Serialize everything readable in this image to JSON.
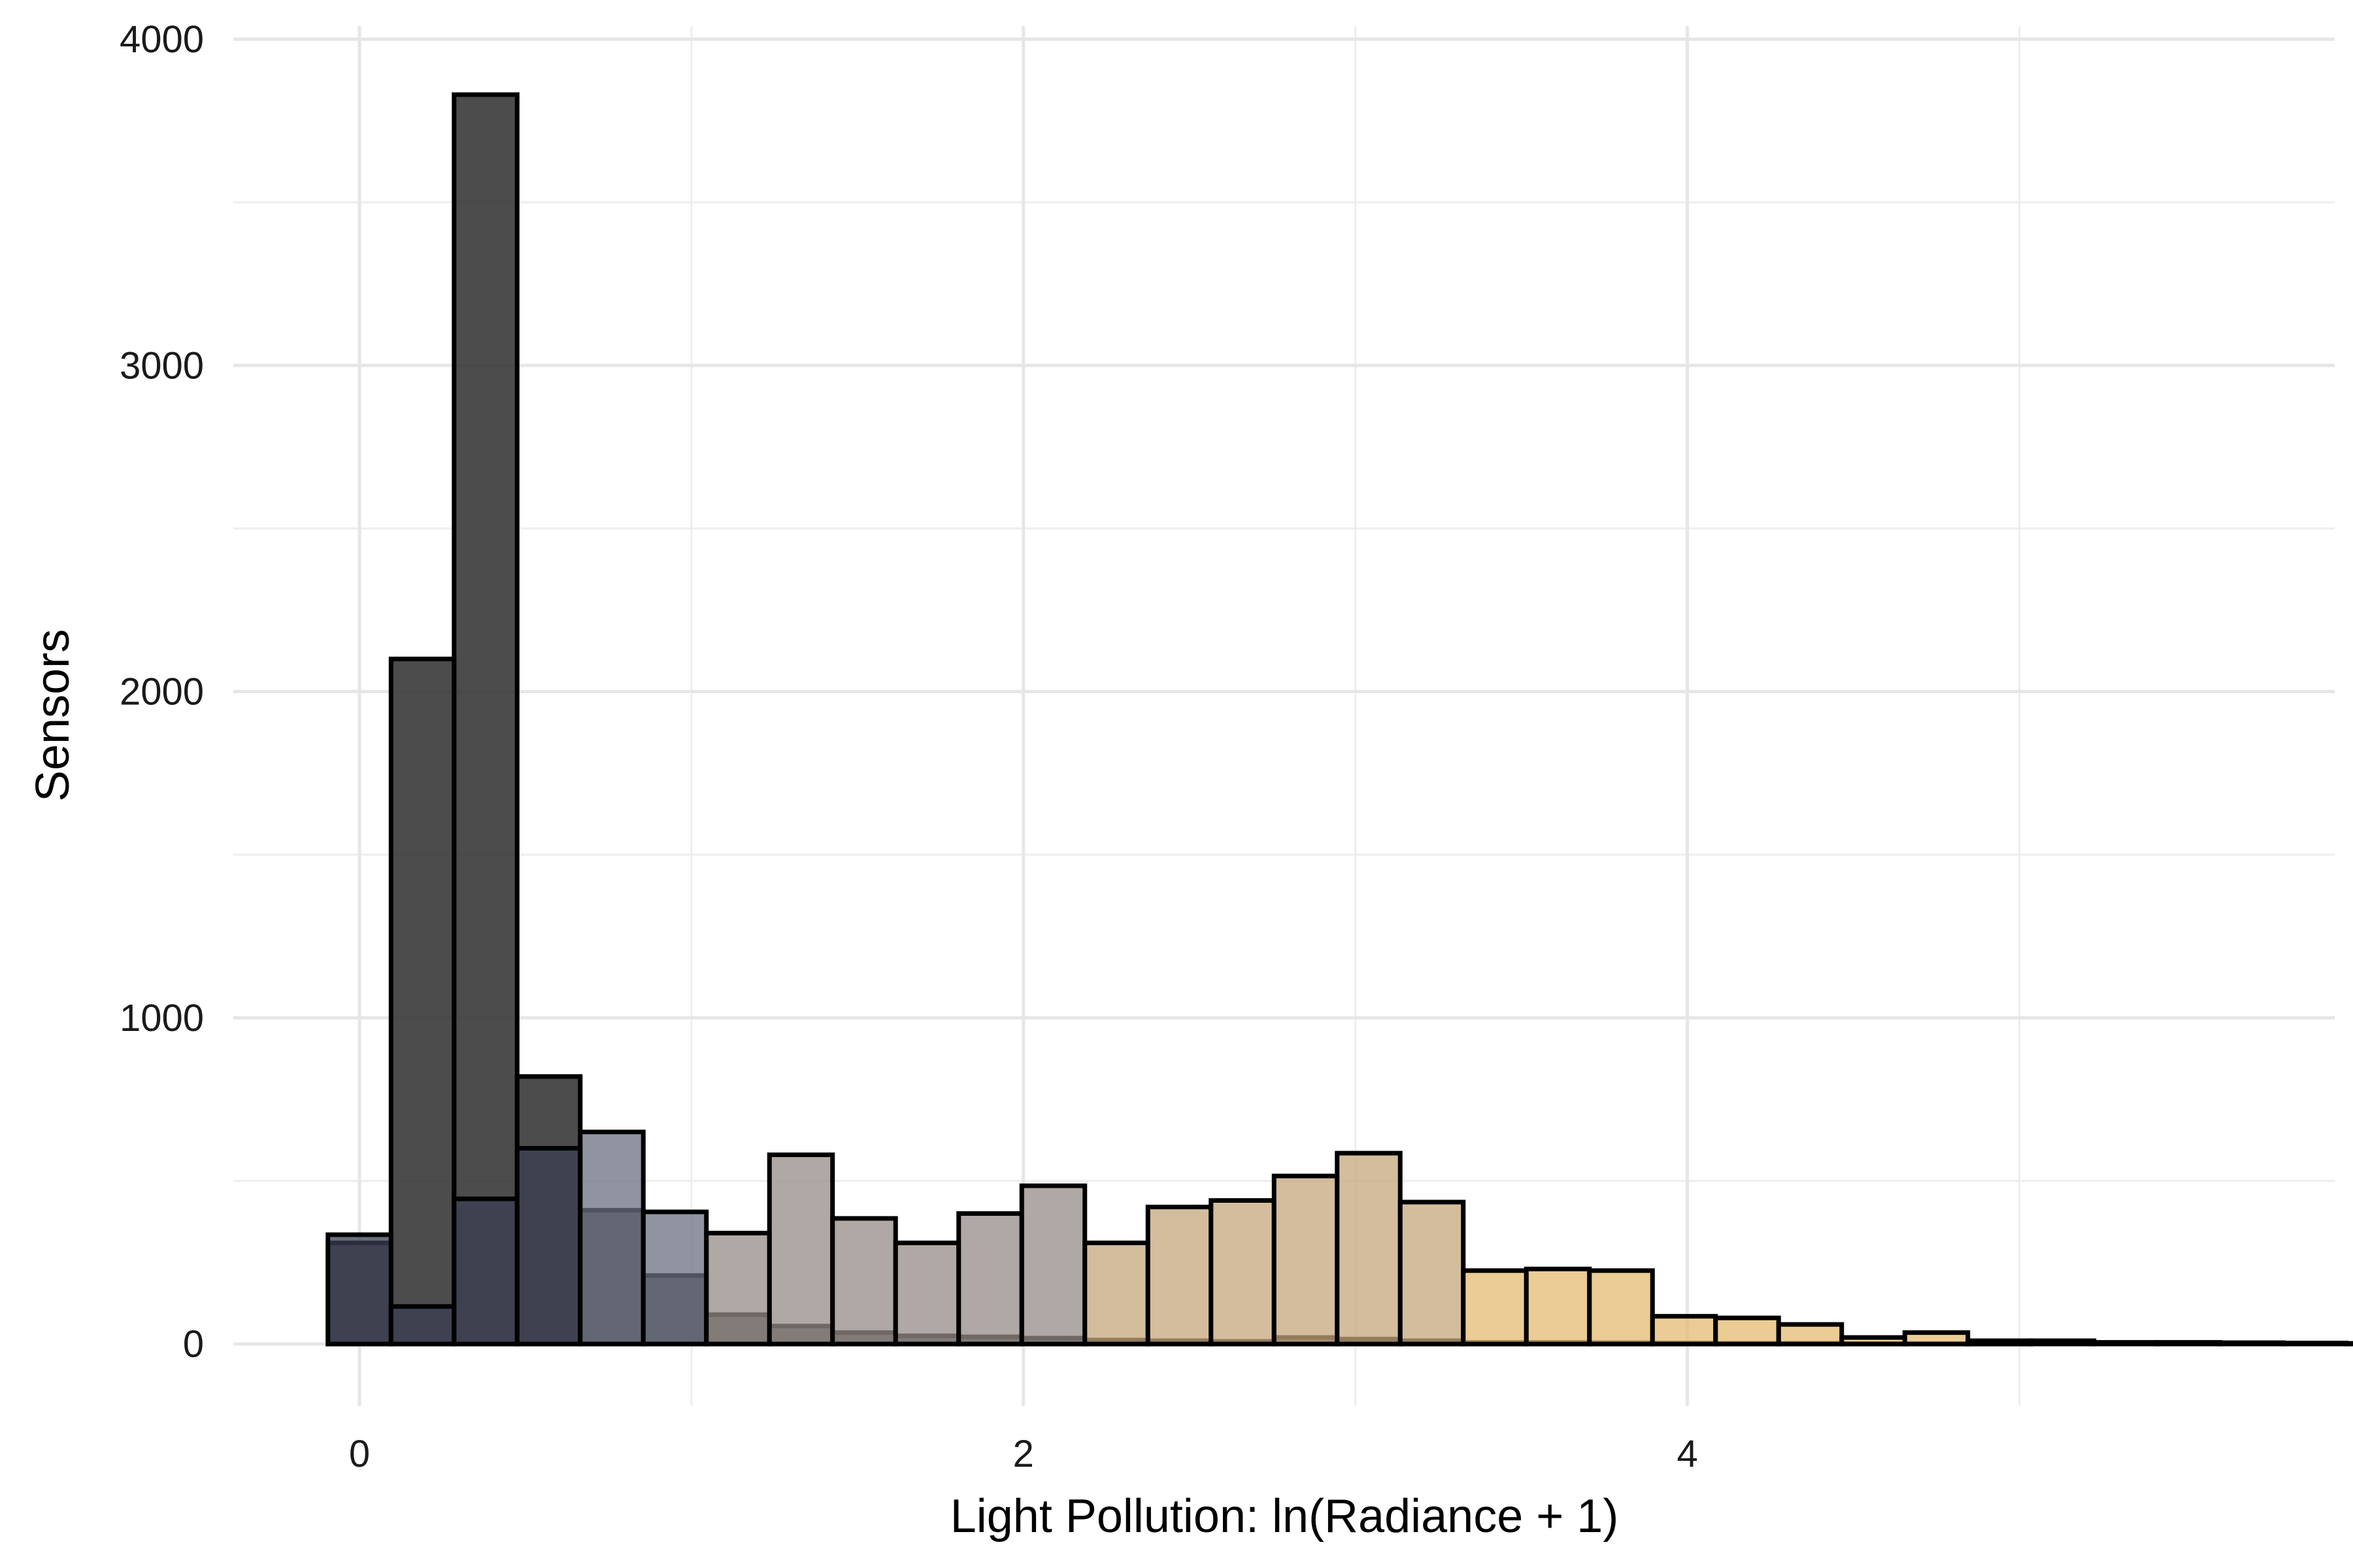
{
  "chart_data": {
    "type": "bar",
    "subtype": "overlaid-histogram",
    "title": "",
    "xlabel": "Light Pollution: ln(Radiance + 1)",
    "ylabel": "Sensors",
    "xlim": [
      -0.38,
      5.95
    ],
    "ylim": [
      -190,
      4040
    ],
    "x_ticks": [
      0,
      2,
      4
    ],
    "x_tick_labels": [
      "0",
      "2",
      "4"
    ],
    "y_ticks": [
      0,
      1000,
      2000,
      3000,
      4000
    ],
    "y_tick_labels": [
      "0",
      "1000",
      "2000",
      "3000",
      "4000"
    ],
    "grid": true,
    "legend": "none",
    "bin_width": 0.19,
    "bin_start": -0.095,
    "series": [
      {
        "key": "dark",
        "color": "#333333",
        "opacity": 0.88,
        "values": [
          310,
          2100,
          3830,
          820,
          410,
          210,
          90,
          55,
          35,
          25,
          22,
          18,
          12,
          10,
          8,
          20,
          15,
          10,
          5,
          5,
          4,
          3,
          2,
          2,
          1,
          1,
          1,
          0,
          0,
          0,
          0,
          0,
          0,
          0
        ]
      },
      {
        "key": "colored",
        "opacity": 0.75,
        "colors": [
          "#3a3f52",
          "#3a3f52",
          "#3a3f52",
          "#3a3f52",
          "#6b6f80",
          "#6b6f80",
          "#968b85",
          "#968b85",
          "#968b85",
          "#968b85",
          "#968b85",
          "#968b85",
          "#c4a77c",
          "#c4a77c",
          "#c4a77c",
          "#c4a77c",
          "#c4a77c",
          "#c4a77c",
          "#e4bb72",
          "#e4bb72",
          "#e4bb72",
          "#e4bb72",
          "#e4bb72",
          "#e4bb72",
          "#e4bb72",
          "#e4bb72",
          "#e4bb72",
          "#e4bb72",
          "#e4bb72",
          "#e4bb72",
          "#e4bb72",
          "#e4bb72",
          "#e4bb72",
          "#e4bb72"
        ],
        "values": [
          335,
          115,
          445,
          600,
          650,
          405,
          340,
          580,
          385,
          310,
          400,
          485,
          310,
          420,
          440,
          515,
          585,
          435,
          225,
          230,
          225,
          85,
          80,
          60,
          20,
          35,
          10,
          10,
          5,
          5,
          4,
          3,
          2,
          2
        ]
      }
    ]
  }
}
